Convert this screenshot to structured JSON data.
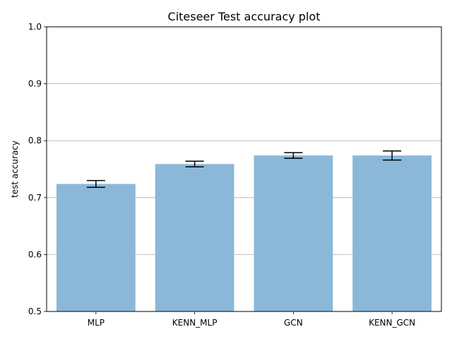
{
  "chart_data": {
    "type": "bar",
    "title": "Citeseer Test accuracy plot",
    "xlabel": "",
    "ylabel": "test accuracy",
    "categories": [
      "MLP",
      "KENN_MLP",
      "GCN",
      "KENN_GCN"
    ],
    "values": [
      0.724,
      0.759,
      0.774,
      0.774
    ],
    "errors": [
      0.006,
      0.005,
      0.005,
      0.008
    ],
    "ylim": [
      0.5,
      1.0
    ],
    "yticks": [
      0.5,
      0.6,
      0.7,
      0.8,
      0.9,
      1.0
    ],
    "ytick_labels": [
      "0.5",
      "0.6",
      "0.7",
      "0.8",
      "0.9",
      "1.0"
    ],
    "grid": "horizontal",
    "bar_color": "#8bb8d9",
    "error_color": "#000000",
    "grid_color": "#b0b0b0"
  }
}
